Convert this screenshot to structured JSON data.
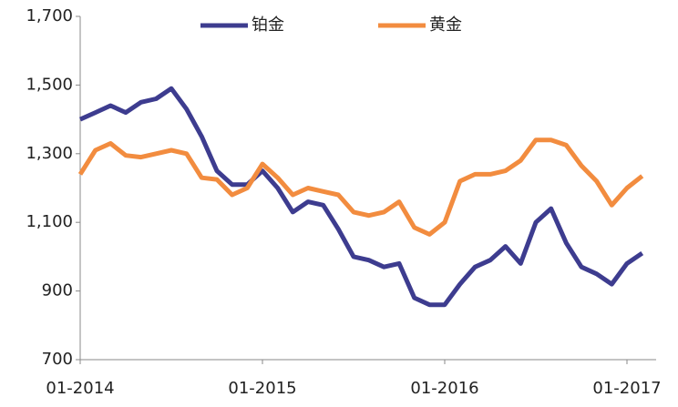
{
  "chart_data": {
    "type": "line",
    "x": [
      "2014-01",
      "2014-02",
      "2014-03",
      "2014-04",
      "2014-05",
      "2014-06",
      "2014-07",
      "2014-08",
      "2014-09",
      "2014-10",
      "2014-11",
      "2014-12",
      "2015-01",
      "2015-02",
      "2015-03",
      "2015-04",
      "2015-05",
      "2015-06",
      "2015-07",
      "2015-08",
      "2015-09",
      "2015-10",
      "2015-11",
      "2015-12",
      "2016-01",
      "2016-02",
      "2016-03",
      "2016-04",
      "2016-05",
      "2016-06",
      "2016-07",
      "2016-08",
      "2016-09",
      "2016-10",
      "2016-11",
      "2016-12",
      "2017-01",
      "2017-02"
    ],
    "xticks": [
      {
        "value": "2014-01",
        "label": "01-2014"
      },
      {
        "value": "2015-01",
        "label": "01-2015"
      },
      {
        "value": "2016-01",
        "label": "01-2016"
      },
      {
        "value": "2017-01",
        "label": "01-2017"
      }
    ],
    "ylim": [
      700,
      1700
    ],
    "yticks": [
      700,
      900,
      {
        "value": 1100,
        "label": "1,100"
      },
      {
        "value": 1300,
        "label": "1,300"
      },
      {
        "value": 1500,
        "label": "1,500"
      },
      {
        "value": 1700,
        "label": "1,700"
      }
    ],
    "grid": false,
    "legend": "top",
    "series": [
      {
        "name": "铂金",
        "color": "#3d3c8f",
        "values": [
          1400,
          1420,
          1440,
          1420,
          1450,
          1460,
          1490,
          1430,
          1350,
          1250,
          1210,
          1210,
          1250,
          1200,
          1130,
          1160,
          1150,
          1080,
          1000,
          990,
          970,
          980,
          880,
          860,
          860,
          920,
          970,
          990,
          1030,
          980,
          1100,
          1140,
          1040,
          970,
          950,
          920,
          980,
          1010
        ]
      },
      {
        "name": "黄金",
        "color": "#f28c3f",
        "values": [
          1240,
          1310,
          1330,
          1295,
          1290,
          1300,
          1310,
          1300,
          1230,
          1225,
          1180,
          1200,
          1270,
          1230,
          1180,
          1200,
          1190,
          1180,
          1130,
          1120,
          1130,
          1160,
          1085,
          1065,
          1100,
          1220,
          1240,
          1240,
          1250,
          1280,
          1340,
          1340,
          1325,
          1265,
          1220,
          1150,
          1200,
          1235
        ]
      }
    ]
  }
}
